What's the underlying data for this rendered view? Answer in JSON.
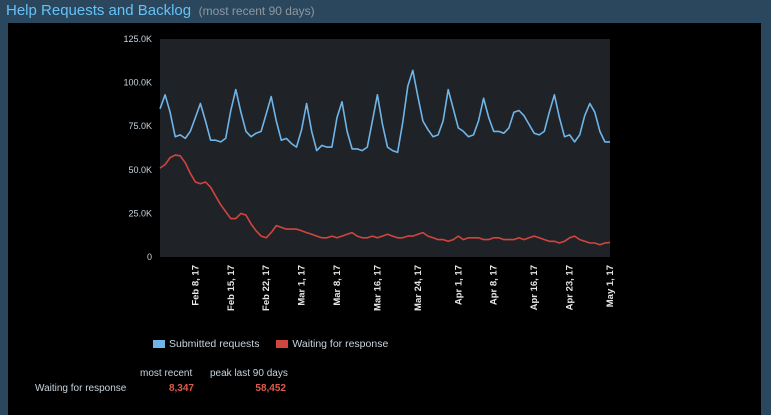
{
  "header": {
    "title": "Help Requests and Backlog",
    "subtitle": "(most recent 90 days)"
  },
  "colors": {
    "submitted": "#6fb5e8",
    "waiting": "#d0453d",
    "plot_bg": "#1f2328",
    "accent_value": "#e05a4b"
  },
  "legend": {
    "submitted": "Submitted requests",
    "waiting": "Waiting for response"
  },
  "stats": {
    "col_most_recent": "most recent",
    "col_peak": "peak last 90 days",
    "row_label": "Waiting for response",
    "most_recent_value": "8,347",
    "peak_value": "58,452"
  },
  "chart_data": {
    "type": "line",
    "title": "Help Requests and Backlog",
    "ylim": [
      0,
      125000
    ],
    "yticks": [
      0,
      25000,
      50000,
      75000,
      100000,
      125000
    ],
    "ytick_labels": [
      "0",
      "25.0K",
      "50.0K",
      "75.0K",
      "100.0K",
      "125.0K"
    ],
    "x_start": "Feb 1, 17",
    "x_end": "May 3, 17",
    "xtick_labels": [
      "Feb 8, 17",
      "Feb 15, 17",
      "Feb 22, 17",
      "Mar 1, 17",
      "Mar 8, 17",
      "Mar 16, 17",
      "Mar 24, 17",
      "Apr 1, 17",
      "Apr 8, 17",
      "Apr 16, 17",
      "Apr 23, 17",
      "May 1, 17"
    ],
    "xtick_days": [
      7,
      14,
      21,
      28,
      35,
      43,
      51,
      59,
      66,
      74,
      81,
      89
    ],
    "series": [
      {
        "name": "Submitted requests",
        "values": [
          85000,
          93000,
          83000,
          69000,
          70000,
          68000,
          72000,
          80000,
          88000,
          78000,
          67000,
          67000,
          66000,
          68000,
          84000,
          96000,
          83000,
          72000,
          69000,
          71000,
          72000,
          82000,
          92000,
          78000,
          67000,
          68000,
          65000,
          63000,
          73000,
          88000,
          72000,
          61000,
          64000,
          63000,
          63000,
          80000,
          89000,
          72000,
          62000,
          62000,
          61000,
          63000,
          78000,
          93000,
          76000,
          63000,
          61000,
          60000,
          77000,
          98000,
          107000,
          92000,
          78000,
          73000,
          69000,
          70000,
          78000,
          96000,
          85000,
          74000,
          72000,
          69000,
          70000,
          78000,
          91000,
          80000,
          72000,
          72000,
          71000,
          74000,
          83000,
          84000,
          81000,
          76000,
          71000,
          70000,
          72000,
          83000,
          93000,
          80000,
          69000,
          70000,
          66000,
          70000,
          81000,
          88000,
          83000,
          72000,
          66000,
          66000
        ]
      },
      {
        "name": "Waiting for response",
        "values": [
          51000,
          53000,
          57000,
          58452,
          58000,
          54000,
          48000,
          43000,
          42000,
          43000,
          40000,
          35000,
          30000,
          26000,
          22000,
          22000,
          25000,
          24000,
          19000,
          15000,
          12000,
          11000,
          14000,
          18000,
          17000,
          16000,
          16000,
          16000,
          15000,
          14000,
          13000,
          12000,
          11000,
          11000,
          12000,
          11000,
          12000,
          13000,
          14000,
          12000,
          11000,
          11000,
          12000,
          11000,
          12000,
          13000,
          12000,
          11000,
          11000,
          12000,
          12000,
          13000,
          14000,
          12000,
          11000,
          10000,
          10000,
          9000,
          10000,
          12000,
          10000,
          11000,
          11000,
          11000,
          10000,
          10000,
          11000,
          11000,
          10000,
          10000,
          10000,
          11000,
          10000,
          11000,
          12000,
          11000,
          10000,
          9000,
          9000,
          8000,
          9000,
          11000,
          12000,
          10000,
          9000,
          8000,
          8000,
          7000,
          8000,
          8347
        ]
      }
    ]
  }
}
